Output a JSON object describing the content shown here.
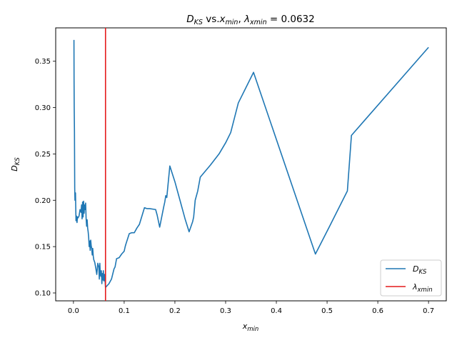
{
  "chart_data": {
    "type": "line",
    "title": {
      "main": "D",
      "main_sub": "KS",
      "vs": " vs.",
      "x": "x",
      "x_sub": "min",
      "comma": ", ",
      "lambda": "λ",
      "lambda_sub": "xmin",
      "value": " = 0.0632"
    },
    "xlabel": {
      "main": "x",
      "sub": "min"
    },
    "ylabel": {
      "main": "D",
      "sub": "KS"
    },
    "xlim": [
      -0.035,
      0.735
    ],
    "ylim": [
      0.0915,
      0.386
    ],
    "xticks": [
      0.0,
      0.1,
      0.2,
      0.3,
      0.4,
      0.5,
      0.6,
      0.7
    ],
    "xtick_labels": [
      "0.0",
      "0.1",
      "0.2",
      "0.3",
      "0.4",
      "0.5",
      "0.6",
      "0.7"
    ],
    "yticks": [
      0.1,
      0.15,
      0.2,
      0.25,
      0.3,
      0.35
    ],
    "ytick_labels": [
      "0.10",
      "0.15",
      "0.20",
      "0.25",
      "0.30",
      "0.35"
    ],
    "grid": false,
    "legend_position": "bottom-right",
    "series": [
      {
        "name_main": "D",
        "name_sub": "KS",
        "color": "#1f77b4",
        "x": [
          0.001,
          0.0012,
          0.0015,
          0.002,
          0.0025,
          0.003,
          0.004,
          0.005,
          0.006,
          0.007,
          0.008,
          0.009,
          0.011,
          0.013,
          0.015,
          0.016,
          0.017,
          0.018,
          0.019,
          0.02,
          0.021,
          0.022,
          0.023,
          0.024,
          0.025,
          0.026,
          0.027,
          0.028,
          0.029,
          0.03,
          0.031,
          0.032,
          0.033,
          0.034,
          0.035,
          0.036,
          0.037,
          0.038,
          0.039,
          0.04,
          0.042,
          0.044,
          0.046,
          0.048,
          0.05,
          0.051,
          0.052,
          0.053,
          0.054,
          0.055,
          0.056,
          0.057,
          0.058,
          0.059,
          0.06,
          0.0615,
          0.0632,
          0.07,
          0.075,
          0.08,
          0.082,
          0.085,
          0.09,
          0.095,
          0.1,
          0.102,
          0.103,
          0.11,
          0.115,
          0.12,
          0.125,
          0.13,
          0.14,
          0.145,
          0.15,
          0.162,
          0.165,
          0.17,
          0.178,
          0.18,
          0.182,
          0.184,
          0.19,
          0.2,
          0.21,
          0.22,
          0.228,
          0.235,
          0.237,
          0.24,
          0.245,
          0.25,
          0.27,
          0.287,
          0.3,
          0.31,
          0.325,
          0.355,
          0.477,
          0.505,
          0.54,
          0.548,
          0.7
        ],
        "values": [
          0.373,
          0.33,
          0.3,
          0.275,
          0.213,
          0.2,
          0.208,
          0.178,
          0.183,
          0.176,
          0.182,
          0.181,
          0.183,
          0.19,
          0.187,
          0.195,
          0.18,
          0.198,
          0.182,
          0.199,
          0.186,
          0.195,
          0.19,
          0.197,
          0.18,
          0.172,
          0.179,
          0.17,
          0.166,
          0.16,
          0.15,
          0.156,
          0.146,
          0.157,
          0.151,
          0.148,
          0.141,
          0.148,
          0.14,
          0.136,
          0.133,
          0.127,
          0.12,
          0.132,
          0.128,
          0.115,
          0.132,
          0.12,
          0.118,
          0.124,
          0.11,
          0.121,
          0.114,
          0.124,
          0.113,
          0.12,
          0.106,
          0.11,
          0.115,
          0.126,
          0.128,
          0.137,
          0.138,
          0.142,
          0.145,
          0.15,
          0.152,
          0.164,
          0.165,
          0.165,
          0.17,
          0.174,
          0.192,
          0.191,
          0.191,
          0.19,
          0.184,
          0.171,
          0.193,
          0.198,
          0.205,
          0.203,
          0.237,
          0.22,
          0.2,
          0.18,
          0.166,
          0.177,
          0.182,
          0.2,
          0.21,
          0.225,
          0.238,
          0.25,
          0.262,
          0.273,
          0.305,
          0.338,
          0.142,
          0.172,
          0.21,
          0.27,
          0.365
        ]
      },
      {
        "name_main": "λ",
        "name_sub": "xmin",
        "color": "#e41a1c",
        "type": "vline",
        "x_value": 0.0632
      }
    ]
  }
}
